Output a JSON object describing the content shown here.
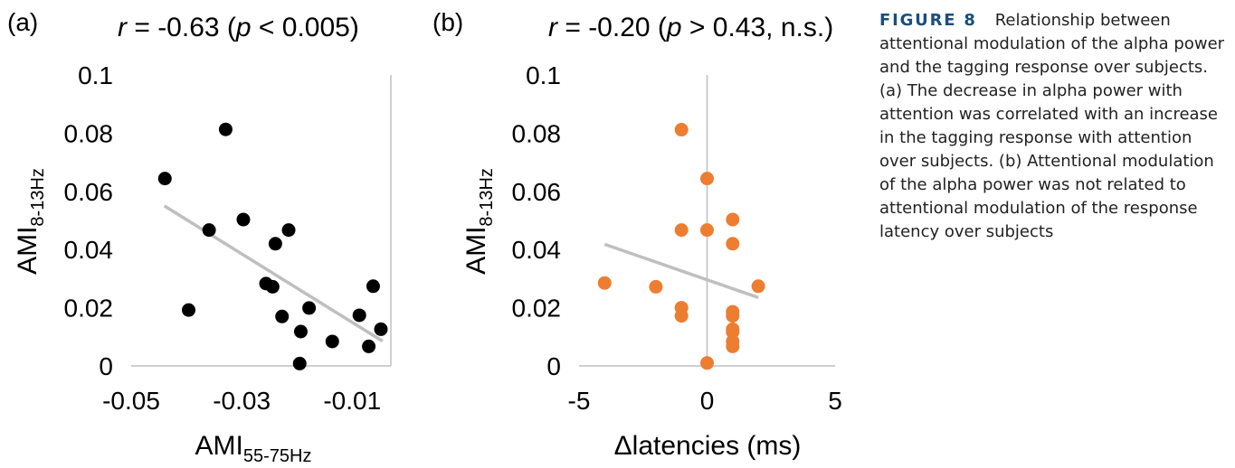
{
  "panels": [
    {
      "panel_label": "(a)",
      "stat": {
        "r_prefix": "r",
        "r_value": " = -0.63 (",
        "p_prefix": "p",
        "p_value": " < 0.005)"
      },
      "y_axis": {
        "base": "AMI",
        "sub": "8-13Hz"
      },
      "x_axis": {
        "base": "AMI",
        "sub": "55-75Hz"
      },
      "yticks": [
        "0",
        "0.02",
        "0.04",
        "0.06",
        "0.08",
        "0.1"
      ],
      "xticks": [
        "-0.05",
        "-0.03",
        "-0.01"
      ]
    },
    {
      "panel_label": "(b)",
      "stat": {
        "r_prefix": "r",
        "r_value": " = -0.20 (",
        "p_prefix": "p",
        "p_value": " > 0.43, n.s.)"
      },
      "y_axis": {
        "base": "AMI",
        "sub": "8-13Hz"
      },
      "x_axis": {
        "base": "Δlatencies (ms)",
        "sub": ""
      },
      "yticks": [
        "0",
        "0.02",
        "0.04",
        "0.06",
        "0.08",
        "0.1"
      ],
      "xticks": [
        "-5",
        "0",
        "5"
      ]
    }
  ],
  "caption": {
    "label": "FIGURE 8",
    "text": "Relationship between attentional modulation of the alpha power and the tagging response over subjects. (a) The decrease in alpha power with attention was correlated with an increase in the tagging response with attention over subjects. (b) Attentional modulation of the alpha power was not related to attentional modulation of the response latency over subjects"
  },
  "colors": {
    "panel_a_points": "#000000",
    "panel_b_points": "#ED7D31",
    "trendline": "#BFBFBF",
    "axis": "#BFBFBF"
  },
  "chart_data": [
    {
      "type": "scatter",
      "title": "r = -0.63 (p < 0.005)",
      "xlabel": "AMI55-75Hz",
      "ylabel": "AMI8-13Hz",
      "xlim": [
        -0.05,
        -0.003
      ],
      "ylim": [
        0,
        0.1
      ],
      "xticks": [
        -0.05,
        -0.03,
        -0.01
      ],
      "yticks": [
        0,
        0.02,
        0.04,
        0.06,
        0.08,
        0.1
      ],
      "grid": false,
      "trendline": {
        "x": [
          -0.044,
          -0.0045
        ],
        "y": [
          0.055,
          0.0085
        ]
      },
      "points": [
        {
          "x": -0.0439,
          "y": 0.0644
        },
        {
          "x": -0.0329,
          "y": 0.0813
        },
        {
          "x": -0.0359,
          "y": 0.0467
        },
        {
          "x": -0.0297,
          "y": 0.0503
        },
        {
          "x": -0.0396,
          "y": 0.0192
        },
        {
          "x": -0.0256,
          "y": 0.0283
        },
        {
          "x": -0.0244,
          "y": 0.0272
        },
        {
          "x": -0.0239,
          "y": 0.042
        },
        {
          "x": -0.0215,
          "y": 0.0467
        },
        {
          "x": -0.0227,
          "y": 0.017
        },
        {
          "x": -0.0178,
          "y": 0.0199
        },
        {
          "x": -0.0193,
          "y": 0.0118
        },
        {
          "x": -0.0195,
          "y": 0.0008
        },
        {
          "x": -0.0136,
          "y": 0.0084
        },
        {
          "x": -0.0087,
          "y": 0.0174
        },
        {
          "x": -0.0062,
          "y": 0.0274
        },
        {
          "x": -0.007,
          "y": 0.0067
        },
        {
          "x": -0.0048,
          "y": 0.0126
        }
      ]
    },
    {
      "type": "scatter",
      "title": "r = -0.20 (p > 0.43, n.s.)",
      "xlabel": "Δlatencies (ms)",
      "ylabel": "AMI8-13Hz",
      "xlim": [
        -5,
        5
      ],
      "ylim": [
        0,
        0.1
      ],
      "xticks": [
        -5,
        0,
        5
      ],
      "yticks": [
        0,
        0.02,
        0.04,
        0.06,
        0.08,
        0.1
      ],
      "grid": false,
      "trendline": {
        "x": [
          -4,
          2
        ],
        "y": [
          0.0418,
          0.0235
        ]
      },
      "points": [
        {
          "x": -4,
          "y": 0.0285
        },
        {
          "x": -2,
          "y": 0.0272
        },
        {
          "x": -1,
          "y": 0.0812
        },
        {
          "x": -1,
          "y": 0.0467
        },
        {
          "x": -1,
          "y": 0.02
        },
        {
          "x": -1,
          "y": 0.0172
        },
        {
          "x": 0,
          "y": 0.0644
        },
        {
          "x": 0,
          "y": 0.0467
        },
        {
          "x": 0,
          "y": 0.001
        },
        {
          "x": 1,
          "y": 0.0503
        },
        {
          "x": 1,
          "y": 0.042
        },
        {
          "x": 1,
          "y": 0.0186
        },
        {
          "x": 1,
          "y": 0.0172
        },
        {
          "x": 1,
          "y": 0.0126
        },
        {
          "x": 1,
          "y": 0.0117
        },
        {
          "x": 1,
          "y": 0.0084
        },
        {
          "x": 1,
          "y": 0.0067
        },
        {
          "x": 2,
          "y": 0.0274
        }
      ]
    }
  ]
}
